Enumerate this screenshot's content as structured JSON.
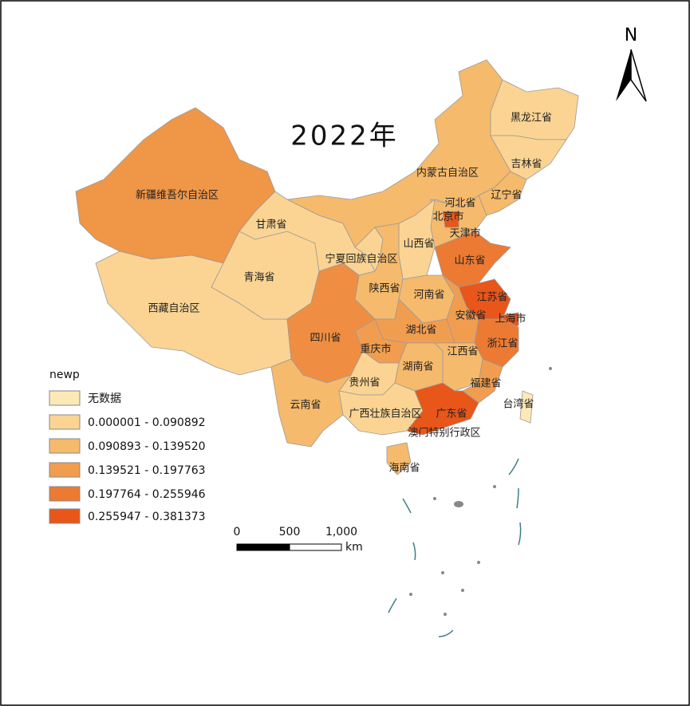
{
  "title": "2022年",
  "provinces": [
    {
      "label": "新疆维吾尔自治区",
      "color": "#ef9647"
    },
    {
      "label": "西藏自治区",
      "color": "#fbd493"
    },
    {
      "label": "青海省",
      "color": "#fbd493"
    },
    {
      "label": "甘肃省",
      "color": "#fbd493"
    },
    {
      "label": "内蒙古自治区",
      "color": "#f6ba6c"
    },
    {
      "label": "黑龙江省",
      "color": "#fbd493"
    },
    {
      "label": "吉林省",
      "color": "#fbd493"
    },
    {
      "label": "辽宁省",
      "color": "#f6ba6c"
    },
    {
      "label": "河北省",
      "color": "#f6ba6c"
    },
    {
      "label": "北京市",
      "color": "#e8561a"
    },
    {
      "label": "天津市",
      "color": "#f6ba6c"
    },
    {
      "label": "山西省",
      "color": "#fbd493"
    },
    {
      "label": "宁夏回族自治区",
      "color": "#fbd493"
    },
    {
      "label": "陕西省",
      "color": "#f6ba6c"
    },
    {
      "label": "河南省",
      "color": "#f6ba6c"
    },
    {
      "label": "山东省",
      "color": "#ec7a33"
    },
    {
      "label": "江苏省",
      "color": "#e8561a"
    },
    {
      "label": "上海市",
      "color": "#e8561a"
    },
    {
      "label": "安徽省",
      "color": "#f19d50"
    },
    {
      "label": "浙江省",
      "color": "#ec7a33"
    },
    {
      "label": "湖北省",
      "color": "#f19d50"
    },
    {
      "label": "重庆市",
      "color": "#f19d50"
    },
    {
      "label": "四川省",
      "color": "#ef8e42"
    },
    {
      "label": "湖南省",
      "color": "#f6ba6c"
    },
    {
      "label": "江西省",
      "color": "#f6ba6c"
    },
    {
      "label": "福建省",
      "color": "#f19d50"
    },
    {
      "label": "贵州省",
      "color": "#fbd493"
    },
    {
      "label": "云南省",
      "color": "#f6ba6c"
    },
    {
      "label": "广西壮族自治区",
      "color": "#fbd493"
    },
    {
      "label": "广东省",
      "color": "#e8561a"
    },
    {
      "label": "海南省",
      "color": "#f6ba6c"
    },
    {
      "label": "台湾省",
      "color": "#fde9b6"
    },
    {
      "label": "澳门特别行政区"
    }
  ],
  "legend": {
    "title": "newp",
    "items": [
      {
        "label": "无数据",
        "color": "#fde9b6"
      },
      {
        "label": "0.000001 - 0.090892",
        "color": "#fbd493"
      },
      {
        "label": "0.090893 - 0.139520",
        "color": "#f6ba6c"
      },
      {
        "label": "0.139521 - 0.197763",
        "color": "#f19d50"
      },
      {
        "label": "0.197764 - 0.255946",
        "color": "#ec7a33"
      },
      {
        "label": "0.255947 - 0.381373",
        "color": "#e8561a"
      }
    ]
  },
  "scale_bar": {
    "labels": [
      "0",
      "500",
      "1,000"
    ],
    "unit": "km"
  },
  "north_arrow": "N"
}
